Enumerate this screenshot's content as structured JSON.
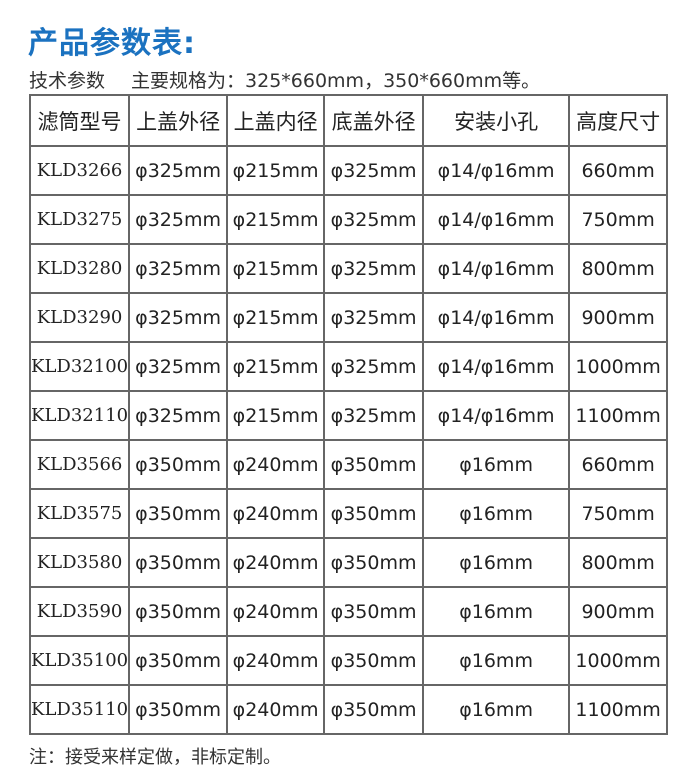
{
  "title": "产品参数表:",
  "subtitle": {
    "label": "技术参数",
    "text": "主要规格为：325*660mm，350*660mm等。"
  },
  "table": {
    "headers": [
      "滤筒型号",
      "上盖外径",
      "上盖内径",
      "底盖外径",
      "安装小孔",
      "高度尺寸"
    ],
    "rows": [
      [
        "KLD3266",
        "φ325mm",
        "φ215mm",
        "φ325mm",
        "φ14/φ16mm",
        "660mm"
      ],
      [
        "KLD3275",
        "φ325mm",
        "φ215mm",
        "φ325mm",
        "φ14/φ16mm",
        "750mm"
      ],
      [
        "KLD3280",
        "φ325mm",
        "φ215mm",
        "φ325mm",
        "φ14/φ16mm",
        "800mm"
      ],
      [
        "KLD3290",
        "φ325mm",
        "φ215mm",
        "φ325mm",
        "φ14/φ16mm",
        "900mm"
      ],
      [
        "KLD32100",
        "φ325mm",
        "φ215mm",
        "φ325mm",
        "φ14/φ16mm",
        "1000mm"
      ],
      [
        "KLD32110",
        "φ325mm",
        "φ215mm",
        "φ325mm",
        "φ14/φ16mm",
        "1100mm"
      ],
      [
        "KLD3566",
        "φ350mm",
        "φ240mm",
        "φ350mm",
        "φ16mm",
        "660mm"
      ],
      [
        "KLD3575",
        "φ350mm",
        "φ240mm",
        "φ350mm",
        "φ16mm",
        "750mm"
      ],
      [
        "KLD3580",
        "φ350mm",
        "φ240mm",
        "φ350mm",
        "φ16mm",
        "800mm"
      ],
      [
        "KLD3590",
        "φ350mm",
        "φ240mm",
        "φ350mm",
        "φ16mm",
        "900mm"
      ],
      [
        "KLD35100",
        "φ350mm",
        "φ240mm",
        "φ350mm",
        "φ16mm",
        "1000mm"
      ],
      [
        "KLD35110",
        "φ350mm",
        "φ240mm",
        "φ350mm",
        "φ16mm",
        "1100mm"
      ]
    ]
  },
  "note": "注：接受来样定做，非标定制。",
  "colors": {
    "title": "#1b72c0"
  }
}
